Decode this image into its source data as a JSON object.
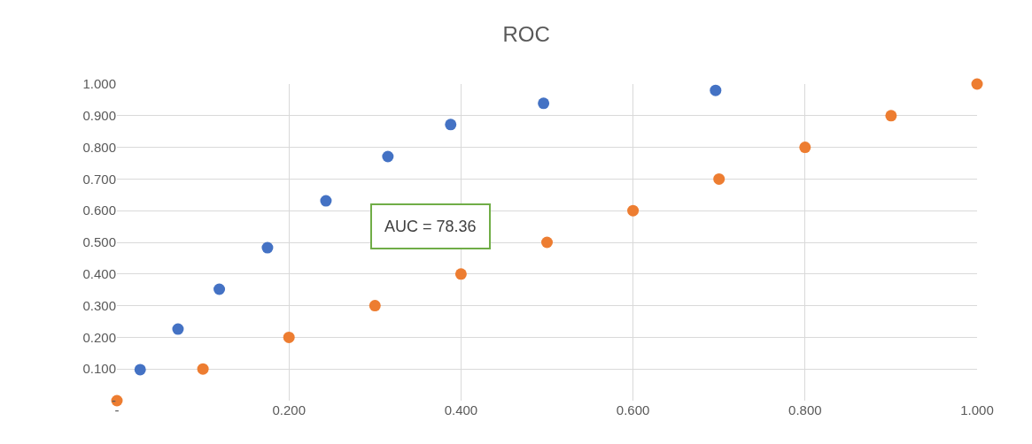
{
  "chart_data": {
    "type": "scatter",
    "title": "ROC",
    "marker": "circle",
    "grid": true,
    "xlim": [
      0,
      1
    ],
    "ylim": [
      0,
      1
    ],
    "xticks": [
      {
        "value": 0,
        "label": "-"
      },
      {
        "value": 0.2,
        "label": "0.200"
      },
      {
        "value": 0.4,
        "label": "0.400"
      },
      {
        "value": 0.6,
        "label": "0.600"
      },
      {
        "value": 0.8,
        "label": "0.800"
      },
      {
        "value": 1,
        "label": "1.000"
      }
    ],
    "yticks": [
      {
        "value": 0,
        "label": "-"
      },
      {
        "value": 0.1,
        "label": "0.100"
      },
      {
        "value": 0.2,
        "label": "0.200"
      },
      {
        "value": 0.3,
        "label": "0.300"
      },
      {
        "value": 0.4,
        "label": "0.400"
      },
      {
        "value": 0.5,
        "label": "0.500"
      },
      {
        "value": 0.6,
        "label": "0.600"
      },
      {
        "value": 0.7,
        "label": "0.700"
      },
      {
        "value": 0.8,
        "label": "0.800"
      },
      {
        "value": 0.9,
        "label": "0.900"
      },
      {
        "value": 1,
        "label": "1.000"
      }
    ],
    "series": [
      {
        "color": "#4472c4",
        "x": [
          0.027,
          0.071,
          0.119,
          0.175,
          0.243,
          0.315,
          0.388,
          0.496,
          0.696
        ],
        "values": [
          0.098,
          0.226,
          0.352,
          0.483,
          0.631,
          0.771,
          0.872,
          0.939,
          0.98
        ]
      },
      {
        "color": "#ed7d31",
        "x": [
          0,
          0.1,
          0.2,
          0.3,
          0.4,
          0.5,
          0.6,
          0.7,
          0.8,
          0.9,
          1
        ],
        "values": [
          0,
          0.1,
          0.2,
          0.3,
          0.4,
          0.5,
          0.6,
          0.7,
          0.8,
          0.9,
          1
        ]
      }
    ],
    "annotations": [
      "AUC = 78.36"
    ]
  }
}
